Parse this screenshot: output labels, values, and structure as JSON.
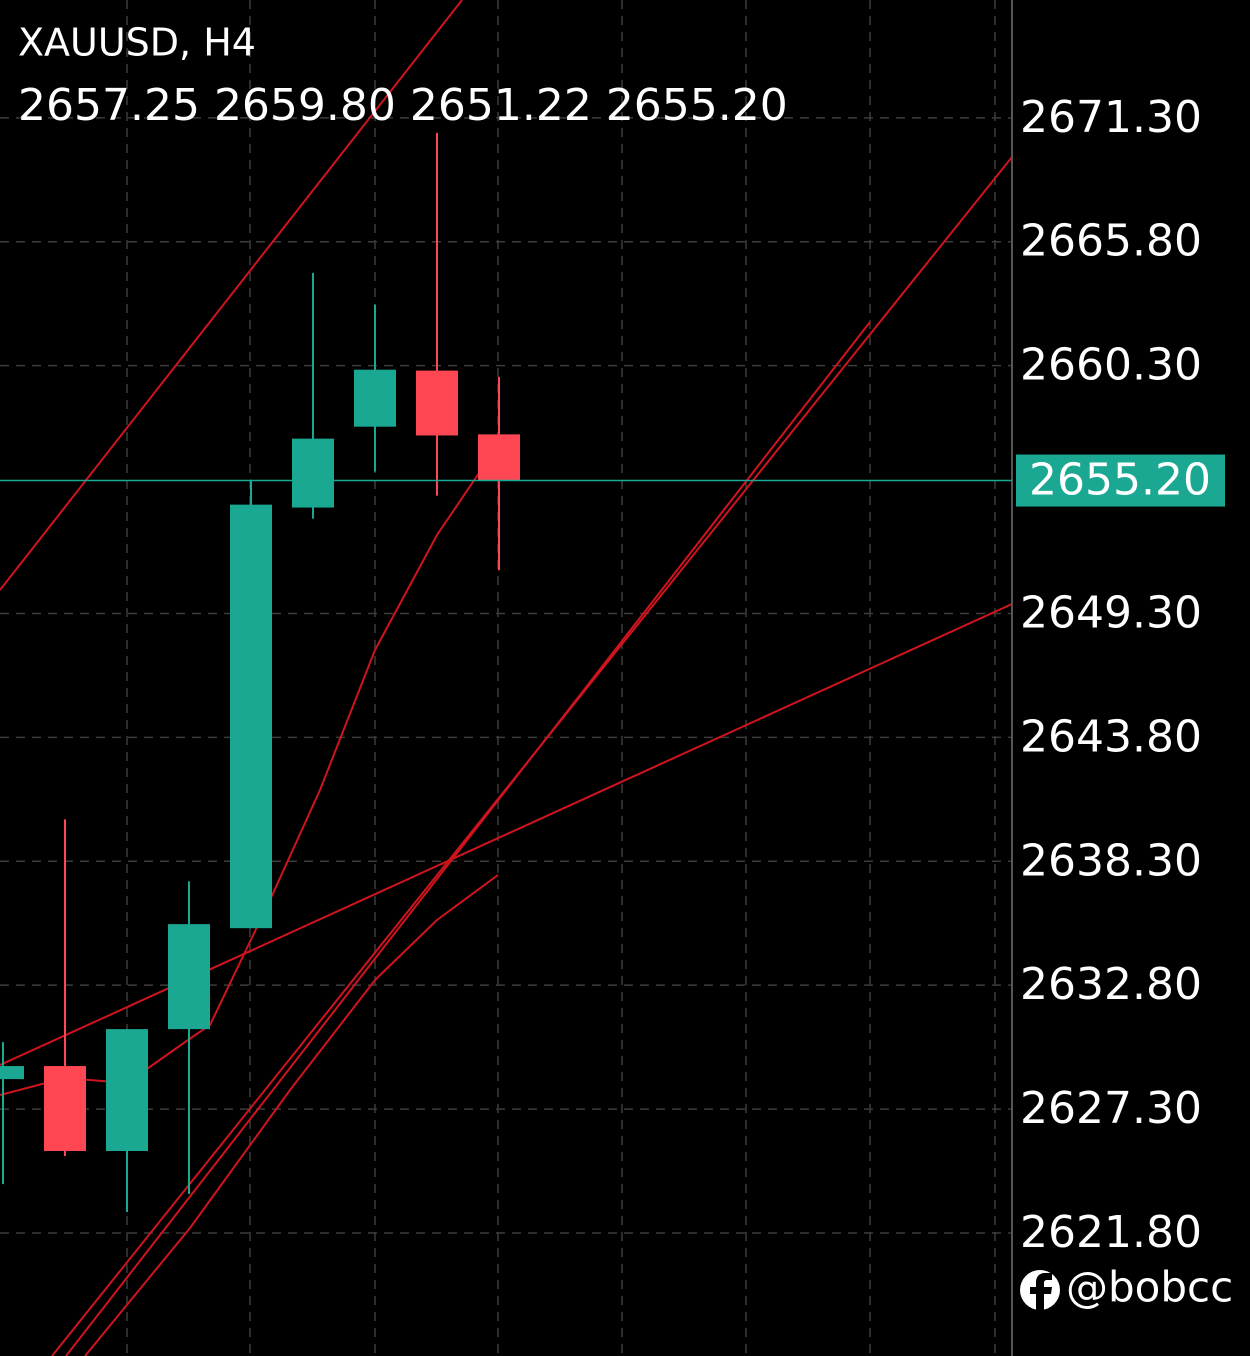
{
  "chart_data": {
    "type": "candlestick",
    "title": "XAUUSD, H4",
    "quote": "2657.25 2659.80 2651.22 2655.20",
    "open": [
      2628.63,
      2629.21,
      2625.44,
      2630.85,
      2635.33,
      2654.0,
      2657.59,
      2660.08,
      2657.25
    ],
    "high": [
      2630.27,
      2640.16,
      2630.85,
      2637.41,
      2655.24,
      2664.42,
      2663.01,
      2670.63,
      2659.8
    ],
    "low": [
      2623.97,
      2625.22,
      2622.73,
      2623.53,
      2635.33,
      2653.51,
      2655.6,
      2654.53,
      2651.22
    ],
    "close": [
      2629.21,
      2625.44,
      2630.85,
      2635.51,
      2654.13,
      2657.06,
      2660.12,
      2657.2,
      2655.2
    ],
    "up_color": "#1ba893",
    "down_color": "#ff4753",
    "ylim": [
      2616.34,
      2676.53
    ],
    "yticks": [
      {
        "value": 2671.3,
        "label": "2671.30"
      },
      {
        "value": 2665.8,
        "label": "2665.80"
      },
      {
        "value": 2660.3,
        "label": "2660.30"
      },
      {
        "value": 2649.3,
        "label": "2649.30"
      },
      {
        "value": 2643.8,
        "label": "2643.80"
      },
      {
        "value": 2638.3,
        "label": "2638.30"
      },
      {
        "value": 2632.8,
        "label": "2632.80"
      },
      {
        "value": 2627.3,
        "label": "2627.30"
      },
      {
        "value": 2621.8,
        "label": "2621.80"
      }
    ],
    "price_line": {
      "value": 2655.2,
      "label": "2655.20",
      "color": "#1ba893"
    },
    "grid": true,
    "watermark": "@bobcc"
  }
}
